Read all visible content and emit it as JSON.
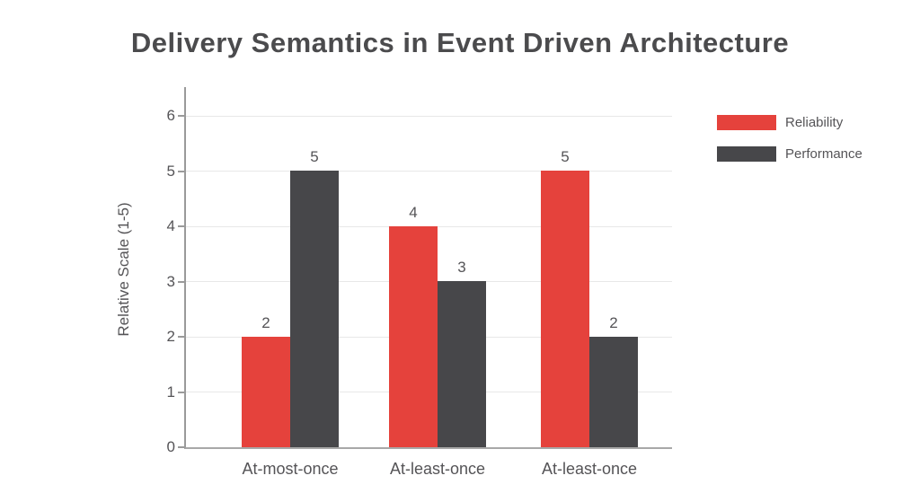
{
  "title": "Delivery Semantics in Event Driven Architecture",
  "colors": {
    "reliability": "#e5423c",
    "performance": "#47474a",
    "title_text": "#4b4b4d",
    "axis_line": "#9a9a9a",
    "gridline": "#e8e8e8",
    "label_text": "#555457",
    "background": "#ffffff"
  },
  "chart_data": {
    "type": "bar",
    "title": "Delivery Semantics in Event Driven Architecture",
    "xlabel": "",
    "ylabel": "Relative Scale (1-5)",
    "categories": [
      "At-most-once",
      "At-least-once",
      "At-least-once"
    ],
    "series": [
      {
        "name": "Reliability",
        "color": "#e5423c",
        "values": [
          2,
          4,
          5
        ]
      },
      {
        "name": "Performance",
        "color": "#47474a",
        "values": [
          5,
          3,
          2
        ]
      }
    ],
    "yticks": [
      0,
      1,
      2,
      3,
      4,
      5,
      6
    ],
    "ylim": [
      0,
      6.5
    ],
    "grid": true,
    "bar_value_labels": true,
    "legend_position": "right"
  },
  "legend": {
    "items": [
      {
        "label": "Reliability",
        "color": "#e5423c"
      },
      {
        "label": "Performance",
        "color": "#47474a"
      }
    ]
  }
}
